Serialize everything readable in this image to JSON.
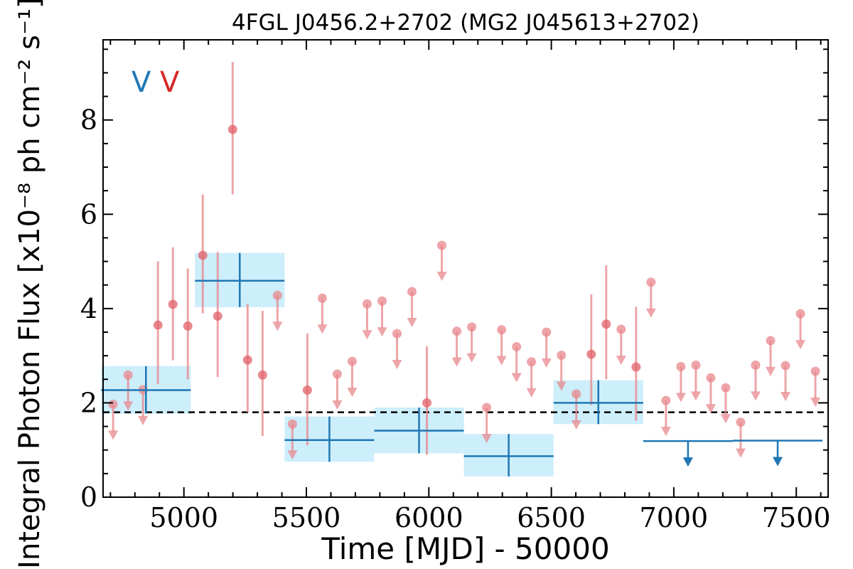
{
  "chart_data": {
    "type": "scatter",
    "title": "4FGL J0456.2+2702 (MG2 J045613+2702)",
    "xlabel": "Time [MJD] - 50000",
    "ylabel": "Integral Photon Flux [x10⁻⁸ ph cm⁻² s⁻¹]",
    "xlim": [
      4670,
      7630
    ],
    "ylim": [
      0,
      9.7
    ],
    "xticks": [
      5000,
      5500,
      6000,
      6500,
      7000,
      7500
    ],
    "yticks": [
      0,
      2,
      4,
      6,
      8
    ],
    "legend": {
      "placement": "top-left",
      "marks": [
        "V",
        "V"
      ],
      "colors": [
        "#1f77b4",
        "#d62728"
      ]
    },
    "average_line": 1.8,
    "colors": {
      "short_bins": "#e8878c",
      "long_bins": "#1f77b4",
      "long_bins_band": "#cdeefb"
    },
    "series": [
      {
        "points": [
          {
            "x": 4845,
            "y": 2.27,
            "xerr": 183,
            "ylo": 1.77,
            "yhi": 2.78
          },
          {
            "x": 5228,
            "y": 4.59,
            "xerr": 183,
            "ylo": 4.03,
            "yhi": 5.18
          },
          {
            "x": 5594,
            "y": 1.21,
            "xerr": 183,
            "ylo": 0.75,
            "yhi": 1.71
          },
          {
            "x": 5960,
            "y": 1.41,
            "xerr": 183,
            "ylo": 0.93,
            "yhi": 1.9
          },
          {
            "x": 6326,
            "y": 0.87,
            "xerr": 183,
            "ylo": 0.44,
            "yhi": 1.34
          },
          {
            "x": 6692,
            "y": 2.0,
            "xerr": 183,
            "ylo": 1.55,
            "yhi": 2.48
          },
          {
            "x": 7058,
            "y": 1.19,
            "xerr": 183,
            "ul": true
          },
          {
            "x": 7424,
            "y": 1.2,
            "xerr": 183,
            "ul": true
          }
        ]
      },
      {
        "points": [
          {
            "x": 4711,
            "y": 1.97,
            "ul": true
          },
          {
            "x": 4772,
            "y": 2.59,
            "ul": true
          },
          {
            "x": 4833,
            "y": 2.28,
            "ul": true
          },
          {
            "x": 4894,
            "y": 3.65,
            "ylo": 2.4,
            "yhi": 5.0
          },
          {
            "x": 4955,
            "y": 4.09,
            "ylo": 2.9,
            "yhi": 5.3
          },
          {
            "x": 5016,
            "y": 3.63,
            "ylo": 2.5,
            "yhi": 4.85
          },
          {
            "x": 5077,
            "y": 5.13,
            "ylo": 3.9,
            "yhi": 6.42
          },
          {
            "x": 5138,
            "y": 3.84,
            "ylo": 2.55,
            "yhi": 5.2
          },
          {
            "x": 5199,
            "y": 7.8,
            "ylo": 6.42,
            "yhi": 9.23
          },
          {
            "x": 5260,
            "y": 2.91,
            "ylo": 1.8,
            "yhi": 4.1
          },
          {
            "x": 5321,
            "y": 2.59,
            "ylo": 1.3,
            "yhi": 3.95
          },
          {
            "x": 5382,
            "y": 4.28,
            "ul": true
          },
          {
            "x": 5443,
            "y": 1.55,
            "ul": true
          },
          {
            "x": 5504,
            "y": 2.27,
            "ylo": 1.1,
            "yhi": 3.47
          },
          {
            "x": 5565,
            "y": 4.22,
            "ul": true
          },
          {
            "x": 5626,
            "y": 2.61,
            "ul": true
          },
          {
            "x": 5687,
            "y": 2.88,
            "ul": true
          },
          {
            "x": 5748,
            "y": 4.1,
            "ul": true
          },
          {
            "x": 5809,
            "y": 4.16,
            "ul": true
          },
          {
            "x": 5870,
            "y": 3.47,
            "ul": true
          },
          {
            "x": 5931,
            "y": 4.36,
            "ul": true
          },
          {
            "x": 5992,
            "y": 2.0,
            "ylo": 0.9,
            "yhi": 3.2
          },
          {
            "x": 6053,
            "y": 5.34,
            "ul": true
          },
          {
            "x": 6114,
            "y": 3.52,
            "ul": true
          },
          {
            "x": 6175,
            "y": 3.61,
            "ul": true
          },
          {
            "x": 6236,
            "y": 1.9,
            "ul": true
          },
          {
            "x": 6297,
            "y": 3.55,
            "ul": true
          },
          {
            "x": 6358,
            "y": 3.19,
            "ul": true
          },
          {
            "x": 6419,
            "y": 2.87,
            "ul": true
          },
          {
            "x": 6480,
            "y": 3.5,
            "ul": true
          },
          {
            "x": 6541,
            "y": 3.01,
            "ul": true
          },
          {
            "x": 6602,
            "y": 2.19,
            "ul": true
          },
          {
            "x": 6663,
            "y": 3.03,
            "ylo": 1.95,
            "yhi": 4.3
          },
          {
            "x": 6724,
            "y": 3.67,
            "ylo": 2.5,
            "yhi": 4.92
          },
          {
            "x": 6785,
            "y": 3.56,
            "ul": true
          },
          {
            "x": 6846,
            "y": 2.76,
            "ylo": 1.62,
            "yhi": 4.04
          },
          {
            "x": 6907,
            "y": 4.56,
            "ul": true
          },
          {
            "x": 6968,
            "y": 2.05,
            "ul": true
          },
          {
            "x": 7029,
            "y": 2.77,
            "ul": true
          },
          {
            "x": 7090,
            "y": 2.8,
            "ul": true
          },
          {
            "x": 7151,
            "y": 2.53,
            "ul": true
          },
          {
            "x": 7212,
            "y": 2.32,
            "ul": true
          },
          {
            "x": 7273,
            "y": 1.59,
            "ul": true
          },
          {
            "x": 7334,
            "y": 2.8,
            "ul": true
          },
          {
            "x": 7395,
            "y": 3.32,
            "ul": true
          },
          {
            "x": 7456,
            "y": 2.79,
            "ul": true
          },
          {
            "x": 7517,
            "y": 3.89,
            "ul": true
          },
          {
            "x": 7578,
            "y": 2.67,
            "ul": true
          }
        ]
      }
    ]
  }
}
